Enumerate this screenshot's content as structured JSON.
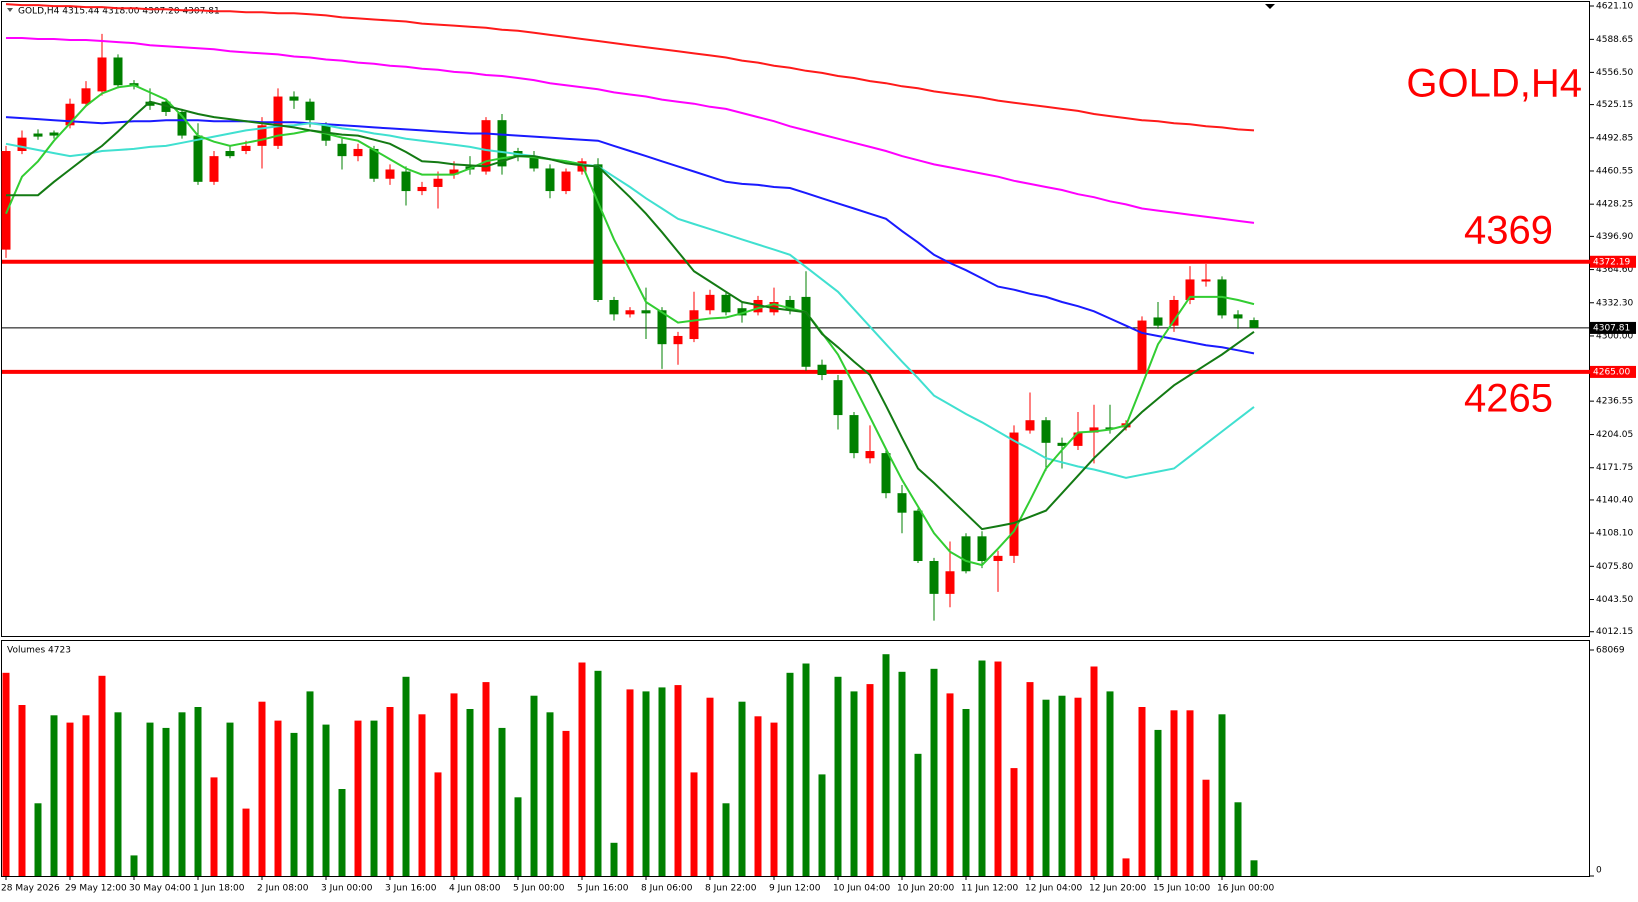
{
  "chart_data": {
    "type": "candlestick",
    "title": "GOLD,H4",
    "header": "GOLD,H4  4315.44 4318.00 4307.20 4307.81",
    "annotations": [
      "4369",
      "4265"
    ],
    "up_color": "#ff0000",
    "down_color": "#008000",
    "categories": [
      "28 May 2026",
      null,
      null,
      null,
      "29 May 12:00",
      null,
      null,
      null,
      "30 May 04:00",
      null,
      null,
      null,
      "1 Jun 18:00",
      null,
      null,
      null,
      "2 Jun 08:00",
      null,
      null,
      null,
      "3 Jun 00:00",
      null,
      null,
      null,
      "3 Jun 16:00",
      null,
      null,
      null,
      "4 Jun 08:00",
      null,
      null,
      null,
      "5 Jun 00:00",
      null,
      null,
      null,
      "5 Jun 16:00",
      null,
      null,
      null,
      "8 Jun 06:00",
      null,
      null,
      null,
      "8 Jun 22:00",
      null,
      null,
      null,
      "9 Jun 12:00",
      null,
      null,
      null,
      "10 Jun 04:00",
      null,
      null,
      null,
      "10 Jun 20:00",
      null,
      null,
      null,
      "11 Jun 12:00",
      null,
      null,
      null,
      "12 Jun 04:00",
      null,
      null,
      null,
      "12 Jun 20:00",
      null,
      null,
      null,
      "15 Jun 10:00",
      null,
      null,
      null,
      "16 Jun 00:00",
      null,
      null
    ],
    "open": [
      4384,
      4480,
      4497,
      4498,
      4505,
      4526,
      4538,
      4571,
      4546,
      4528,
      4528,
      4518,
      4495,
      4450,
      4480,
      4480,
      4485,
      4485,
      4533,
      4528,
      4505,
      4487,
      4475,
      4482,
      4453,
      4460,
      4441,
      4445,
      4457,
      4465,
      4460,
      4510,
      4480,
      4475,
      4463,
      4441,
      4460,
      4467,
      4335,
      4321,
      4325,
      4325,
      4292,
      4297,
      4325,
      4340,
      4327,
      4323,
      4323,
      4335,
      4338,
      4272,
      4257,
      4223,
      4181,
      4186,
      4147,
      4130,
      4081,
      4049,
      4105,
      4105,
      4081,
      4086,
      4208,
      4218,
      4196,
      4193,
      4206,
      4211,
      4211,
      4266,
      4318,
      4310,
      4335,
      4353,
      4355,
      4321,
      4315.44
    ],
    "high": [
      4485,
      4500,
      4501,
      4500,
      4531,
      4548,
      4594,
      4574,
      4549,
      4541,
      4531,
      4521,
      4507,
      4480,
      4485,
      4490,
      4513,
      4541,
      4538,
      4531,
      4508,
      4492,
      4487,
      4485,
      4467,
      4465,
      4450,
      4460,
      4470,
      4475,
      4513,
      4516,
      4483,
      4480,
      4467,
      4463,
      4473,
      4473,
      4338,
      4328,
      4347,
      4328,
      4304,
      4343,
      4345,
      4343,
      4333,
      4339,
      4347,
      4339,
      4363,
      4277,
      4262,
      4226,
      4213,
      4191,
      4155,
      4132,
      4084,
      4100,
      4108,
      4110,
      4091,
      4213,
      4245,
      4221,
      4201,
      4226,
      4233,
      4233,
      4218,
      4319,
      4333,
      4339,
      4368,
      4370,
      4358,
      4325,
      4318
    ],
    "low": [
      4376,
      4477,
      4491,
      4492,
      4502,
      4523,
      4534,
      4541,
      4540,
      4520,
      4514,
      4492,
      4447,
      4447,
      4473,
      4477,
      4463,
      4482,
      4521,
      4503,
      4485,
      4462,
      4470,
      4450,
      4447,
      4427,
      4437,
      4424,
      4453,
      4457,
      4457,
      4457,
      4470,
      4460,
      4434,
      4438,
      4457,
      4333,
      4315,
      4318,
      4297,
      4268,
      4272,
      4294,
      4321,
      4320,
      4313,
      4320,
      4320,
      4321,
      4266,
      4257,
      4209,
      4181,
      4176,
      4142,
      4108,
      4079,
      4023,
      4036,
      4069,
      4074,
      4051,
      4079,
      4205,
      4169,
      4171,
      4189,
      4176,
      4205,
      4208,
      4264,
      4307,
      4304,
      4331,
      4348,
      4317,
      4307,
      4307.2
    ],
    "close": [
      4480,
      4493,
      4494,
      4495,
      4526,
      4541,
      4571,
      4544,
      4543,
      4524,
      4518,
      4495,
      4450,
      4475,
      4475,
      4485,
      4505,
      4533,
      4529,
      4510,
      4490,
      4475,
      4482,
      4453,
      4462,
      4441,
      4445,
      4453,
      4462,
      4462,
      4510,
      4465,
      4475,
      4463,
      4441,
      4460,
      4470,
      4335,
      4321,
      4325,
      4322,
      4292,
      4300,
      4325,
      4340,
      4323,
      4320,
      4335,
      4333,
      4325,
      4270,
      4262,
      4223,
      4186,
      4188,
      4147,
      4128,
      4081,
      4049,
      4071,
      4071,
      4081,
      4086,
      4206,
      4218,
      4196,
      4193,
      4206,
      4211,
      4209,
      4215,
      4315,
      4310,
      4335,
      4355,
      4355,
      4320,
      4317,
      4307.81
    ],
    "lines": [
      {
        "color": "#ff1a1a",
        "values": [
          4623,
          4622,
          4622,
          4621,
          4621,
          4620,
          4620,
          4619,
          4619,
          4618,
          4618,
          4617,
          4617,
          4616,
          4616,
          4615,
          4615,
          4614,
          4614,
          4613,
          4612,
          4610,
          4609,
          4608,
          4607,
          4606,
          4604,
          4603,
          4602,
          4601,
          4600,
          4598,
          4597,
          4595,
          4593,
          4591,
          4589,
          4587,
          4585,
          4583,
          4581,
          4579,
          4577,
          4575,
          4573,
          4571,
          4568,
          4566,
          4563,
          4561,
          4558,
          4556,
          4553,
          4551,
          4548,
          4546,
          4543,
          4541,
          4538,
          4536,
          4534,
          4532,
          4529,
          4527,
          4525,
          4523,
          4521,
          4519,
          4516,
          4514,
          4512,
          4510,
          4509,
          4507,
          4506,
          4504,
          4503,
          4501,
          4500
        ]
      },
      {
        "color": "#ff00ff",
        "values": [
          4590,
          4590,
          4589,
          4589,
          4588,
          4588,
          4587,
          4586,
          4585,
          4583,
          4582,
          4581,
          4580,
          4579,
          4577,
          4576,
          4575,
          4574,
          4572,
          4571,
          4569,
          4568,
          4566,
          4565,
          4563,
          4562,
          4560,
          4559,
          4557,
          4556,
          4554,
          4553,
          4551,
          4549,
          4546,
          4544,
          4542,
          4540,
          4537,
          4535,
          4533,
          4530,
          4528,
          4526,
          4523,
          4521,
          4517,
          4513,
          4509,
          4504,
          4500,
          4496,
          4492,
          4488,
          4484,
          4480,
          4475,
          4471,
          4467,
          4464,
          4461,
          4458,
          4455,
          4451,
          4448,
          4445,
          4442,
          4438,
          4435,
          4431,
          4428,
          4424,
          4422,
          4420,
          4418,
          4416,
          4414,
          4412,
          4410
        ]
      },
      {
        "color": "#1a1aff",
        "values": [
          4513,
          4512,
          4511,
          4510,
          4509,
          4508,
          4507,
          4508,
          4509,
          4509,
          4510,
          4510,
          4510,
          4509,
          4509,
          4509,
          4508,
          4508,
          4508,
          4507,
          4506,
          4505,
          4504,
          4503,
          4502,
          4501,
          4500,
          4499,
          4498,
          4497,
          4497,
          4496,
          4495,
          4494,
          4493,
          4492,
          4491,
          4490,
          4485,
          4480,
          4475,
          4470,
          4465,
          4460,
          4455,
          4450,
          4448,
          4447,
          4445,
          4444,
          4439,
          4434,
          4429,
          4424,
          4419,
          4414,
          4402,
          4391,
          4379,
          4371,
          4364,
          4356,
          4348,
          4345,
          4341,
          4338,
          4333,
          4329,
          4324,
          4317,
          4310,
          4303,
          4300,
          4297,
          4294,
          4291,
          4289,
          4286,
          4283
        ]
      },
      {
        "color": "#40e0d0",
        "values": [
          4487,
          4484,
          4481,
          4478,
          4475,
          4477,
          4480,
          4481,
          4482,
          4484,
          4485,
          4488,
          4491,
          4494,
          4497,
          4500,
          4502,
          4504,
          4505,
          4507,
          4505,
          4502,
          4500,
          4497,
          4495,
          4492,
          4490,
          4488,
          4486,
          4484,
          4481,
          4479,
          4477,
          4475,
          4472,
          4470,
          4467,
          4465,
          4455,
          4445,
          4434,
          4424,
          4414,
          4409,
          4404,
          4399,
          4394,
          4389,
          4384,
          4379,
          4367,
          4355,
          4343,
          4326,
          4309,
          4292,
          4275,
          4259,
          4242,
          4233,
          4224,
          4216,
          4207,
          4198,
          4190,
          4181,
          4177,
          4173,
          4170,
          4166,
          4162,
          4165,
          4168,
          4171,
          4183,
          4195,
          4207,
          4219,
          4231
        ]
      },
      {
        "color": "#32cd32",
        "values": [
          4419,
          4455,
          4470,
          4490,
          4507,
          4524,
          4536,
          4542,
          4544,
          4537,
          4530,
          4514,
          4495,
          4489,
          4485,
          4488,
          4491,
          4495,
          4497,
          4500,
          4497,
          4493,
          4490,
          4481,
          4472,
          4463,
          4457,
          4457,
          4457,
          4463,
          4470,
          4473,
          4475,
          4474,
          4472,
          4470,
          4467,
          4430,
          4394,
          4364,
          4333,
          4323,
          4313,
          4315,
          4317,
          4318,
          4322,
          4327,
          4331,
          4327,
          4323,
          4303,
          4282,
          4252,
          4221,
          4190,
          4160,
          4134,
          4108,
          4090,
          4081,
          4077,
          4093,
          4110,
          4140,
          4171,
          4189,
          4206,
          4207,
          4209,
          4213,
          4252,
          4292,
          4315,
          4338,
          4338,
          4338,
          4335,
          4331
        ]
      },
      {
        "color": "#137a13",
        "values": [
          4437,
          4437,
          4437,
          4450,
          4462,
          4474,
          4485,
          4499,
          4514,
          4528,
          4524,
          4520,
          4516,
          4513,
          4511,
          4509,
          4507,
          4505,
          4503,
          4500,
          4498,
          4496,
          4495,
          4491,
          4487,
          4479,
          4470,
          4469,
          4467,
          4466,
          4465,
          4470,
          4475,
          4475,
          4472,
          4468,
          4466,
          4465,
          4450,
          4435,
          4419,
          4401,
          4382,
          4363,
          4353,
          4343,
          4333,
          4330,
          4327,
          4325,
          4323,
          4302,
          4289,
          4275,
          4262,
          4232,
          4201,
          4171,
          4157,
          4142,
          4127,
          4112,
          4115,
          4118,
          4124,
          4130,
          4147,
          4164,
          4181,
          4196,
          4211,
          4226,
          4239,
          4252,
          4262,
          4272,
          4282,
          4293,
          4304
        ]
      }
    ],
    "levels": [
      {
        "value": 4372.19,
        "label": "4372.19",
        "color": "#ff0000",
        "line_width": 4
      },
      {
        "value": 4265.0,
        "label": "4265.00",
        "color": "#ff0000",
        "line_width": 4
      },
      {
        "value": 4307.81,
        "label": "4307.81",
        "color": "#000000",
        "line_width": 1
      }
    ],
    "ylim": [
      4008,
      4625
    ],
    "yticks": [
      {
        "value": 4621.1,
        "label": "4621.10"
      },
      {
        "value": 4588.65,
        "label": "4588.65"
      },
      {
        "value": 4556.5,
        "label": "4556.50"
      },
      {
        "value": 4525.15,
        "label": "4525.15"
      },
      {
        "value": 4492.85,
        "label": "4492.85"
      },
      {
        "value": 4460.55,
        "label": "4460.55"
      },
      {
        "value": 4428.25,
        "label": "4428.25"
      },
      {
        "value": 4396.9,
        "label": "4396.90"
      },
      {
        "value": 4364.6,
        "label": "4364.60"
      },
      {
        "value": 4332.3,
        "label": "4332.30"
      },
      {
        "value": 4300.0,
        "label": "4300.00"
      },
      {
        "value": 4236.55,
        "label": "4236.55"
      },
      {
        "value": 4204.05,
        "label": "4204.05"
      },
      {
        "value": 4171.75,
        "label": "4171.75"
      },
      {
        "value": 4140.4,
        "label": "4140.40"
      },
      {
        "value": 4108.1,
        "label": "4108.10"
      },
      {
        "value": 4075.8,
        "label": "4075.80"
      },
      {
        "value": 4043.5,
        "label": "4043.50"
      },
      {
        "value": 4012.15,
        "label": "4012.15"
      }
    ],
    "volume": {
      "title": "Volumes 4723",
      "ylim": [
        0,
        68069
      ],
      "yticks": [
        68069,
        0
      ],
      "values": [
        61200,
        51500,
        21900,
        48400,
        46200,
        48400,
        60300,
        49300,
        6200,
        46200,
        44600,
        49300,
        50900,
        29700,
        46200,
        20300,
        52500,
        46800,
        43100,
        55600,
        45600,
        26200,
        46800,
        46800,
        50900,
        60000,
        48700,
        31200,
        55000,
        50300,
        58400,
        44600,
        23700,
        54300,
        49300,
        43700,
        64300,
        61800,
        10000,
        56200,
        55600,
        56800,
        57500,
        31200,
        53700,
        21900,
        52500,
        48100,
        46200,
        61200,
        64000,
        30600,
        60000,
        55600,
        57800,
        66800,
        61500,
        36800,
        62400,
        55000,
        50300,
        64900,
        64600,
        32500,
        58400,
        53100,
        54300,
        53700,
        63100,
        55600,
        5300,
        50900,
        44000,
        49900,
        49900,
        29000,
        48700,
        22200,
        4723
      ]
    }
  }
}
